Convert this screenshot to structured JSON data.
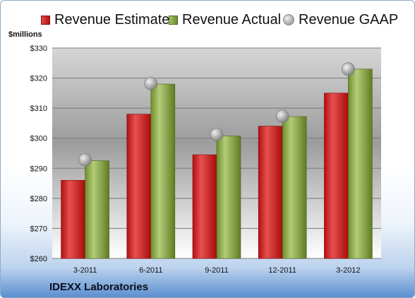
{
  "chart_data": {
    "type": "bar",
    "categories": [
      "3-2011",
      "6-2011",
      "9-2011",
      "12-2011",
      "3-2012"
    ],
    "series": [
      {
        "name": "Revenue Estimate",
        "values": [
          286.0,
          308.0,
          294.5,
          304.0,
          315.0
        ],
        "color": "#c41e1e"
      },
      {
        "name": "Revenue Actual",
        "values": [
          292.5,
          318.0,
          300.7,
          307.2,
          323.0
        ],
        "color": "#8aab45"
      },
      {
        "name": "Revenue GAAP",
        "type": "scatter",
        "values": [
          292.8,
          318.2,
          301.2,
          307.3,
          323.0
        ],
        "color": "#a8a8a8"
      }
    ],
    "ylabel": "$millions",
    "ylim": [
      260,
      330
    ],
    "yticks": [
      "$260",
      "$270",
      "$280",
      "$290",
      "$300",
      "$310",
      "$320",
      "$330"
    ],
    "grid": true,
    "legend_position": "top"
  },
  "company": "IDEXX Laboratories"
}
